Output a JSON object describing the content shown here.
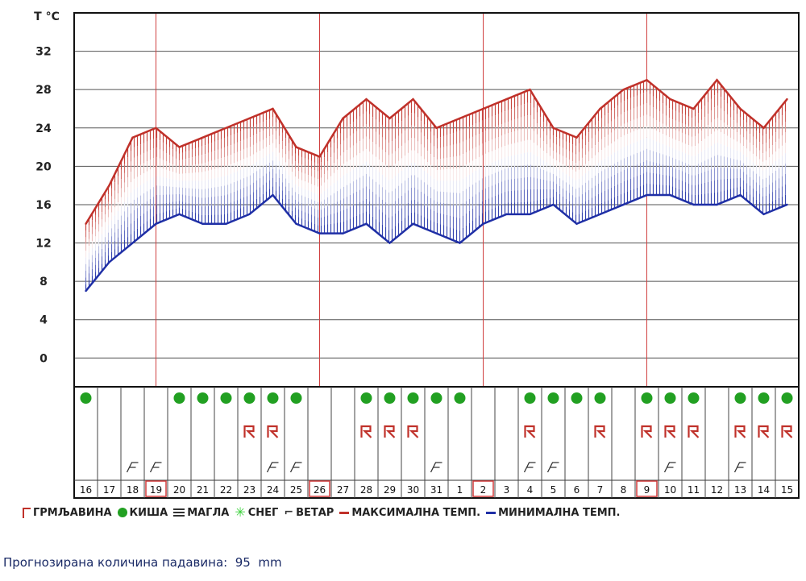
{
  "chart_data": {
    "type": "area",
    "y_axis_title": "T °C",
    "yticks": [
      "32",
      "28",
      "24",
      "20",
      "16",
      "12",
      "8",
      "4",
      "0"
    ],
    "ylim": [
      -3,
      36
    ],
    "grid": true,
    "day_labels": [
      "16",
      "17",
      "18",
      "19",
      "20",
      "21",
      "22",
      "23",
      "24",
      "25",
      "26",
      "27",
      "28",
      "29",
      "30",
      "31",
      "1",
      "2",
      "3",
      "4",
      "5",
      "6",
      "7",
      "8",
      "9",
      "10",
      "11",
      "12",
      "13",
      "14",
      "15"
    ],
    "highlighted_days": [
      "19",
      "26",
      "2",
      "9"
    ],
    "series": [
      {
        "name": "МАКСИМАЛНА ТЕМП.",
        "color": "#c0312a",
        "values": [
          14,
          18,
          23,
          24,
          22,
          23,
          24,
          25,
          26,
          22,
          21,
          25,
          27,
          25,
          27,
          24,
          25,
          26,
          27,
          28,
          24,
          23,
          26,
          28,
          29,
          27,
          26,
          29,
          26,
          24,
          27
        ]
      },
      {
        "name": "МИНИМАЛНА ТЕМП.",
        "color": "#1f2fa6",
        "values": [
          7,
          10,
          12,
          14,
          15,
          14,
          14,
          15,
          17,
          14,
          13,
          13,
          14,
          12,
          14,
          13,
          12,
          14,
          15,
          15,
          16,
          14,
          15,
          16,
          17,
          17,
          16,
          16,
          17,
          15,
          16
        ]
      }
    ],
    "rain_days": [
      "16",
      "20",
      "21",
      "22",
      "23",
      "24",
      "25",
      "28",
      "29",
      "30",
      "31",
      "1",
      "4",
      "5",
      "6",
      "7",
      "9",
      "10",
      "11",
      "13",
      "14",
      "15"
    ],
    "storm_days": [
      "23",
      "24",
      "28",
      "29",
      "30",
      "4",
      "7",
      "9",
      "10",
      "11",
      "13",
      "14",
      "15"
    ],
    "wind_days": [
      "18",
      "19",
      "24",
      "25",
      "31",
      "4",
      "5",
      "10",
      "13"
    ]
  },
  "legend": {
    "storm": "ГРМЉАВИНА",
    "rain": "КИША",
    "fog": "МАГЛА",
    "snow": "СНЕГ",
    "wind": "ВЕТАР",
    "max": "МАКСИМАЛНА ТЕМП.",
    "min": "МИНИМАЛНА ТЕМП."
  },
  "colors": {
    "max": "#c0312a",
    "min": "#1f2fa6",
    "rain": "#22a022",
    "highlight": "#d03a3a"
  },
  "precipitation": {
    "label": "Прогнозирана количина падавина:",
    "value": "95",
    "unit": "mm"
  }
}
